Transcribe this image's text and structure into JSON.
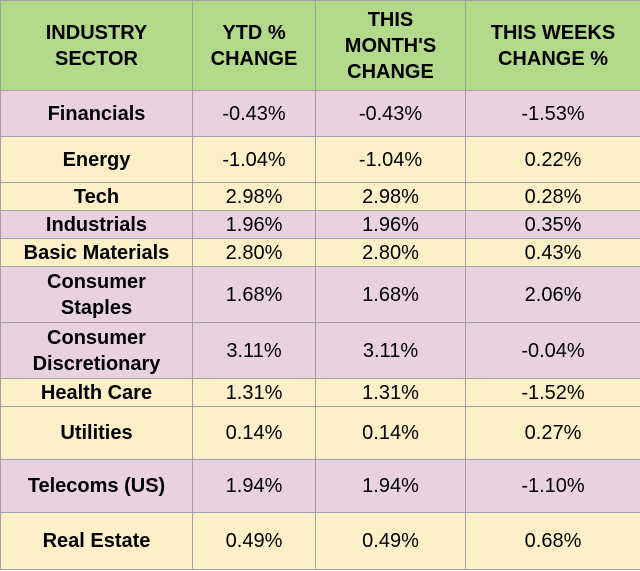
{
  "colors": {
    "header": "#b3d98a",
    "row_pink": "#ead1e0",
    "row_yellow": "#fdf0c8"
  },
  "chart_data": {
    "type": "table",
    "columns": [
      [
        "INDUSTRY",
        "SECTOR"
      ],
      [
        "YTD %",
        "CHANGE"
      ],
      [
        "THIS",
        "MONTH'S",
        "CHANGE"
      ],
      [
        "THIS WEEKS",
        "CHANGE %"
      ]
    ],
    "rows": [
      {
        "sector": [
          "Financials"
        ],
        "ytd": "-0.43%",
        "month": "-0.43%",
        "week": "-1.53%",
        "shade": "pink",
        "h": 46
      },
      {
        "sector": [
          "Energy"
        ],
        "ytd": "-1.04%",
        "month": "-1.04%",
        "week": "0.22%",
        "shade": "yellow",
        "h": 46
      },
      {
        "sector": [
          "Tech"
        ],
        "ytd": "2.98%",
        "month": "2.98%",
        "week": "0.28%",
        "shade": "yellow",
        "h": 28
      },
      {
        "sector": [
          "Industrials"
        ],
        "ytd": "1.96%",
        "month": "1.96%",
        "week": "0.35%",
        "shade": "pink",
        "h": 28
      },
      {
        "sector": [
          "Basic Materials"
        ],
        "ytd": "2.80%",
        "month": "2.80%",
        "week": "0.43%",
        "shade": "yellow",
        "h": 28
      },
      {
        "sector": [
          "Consumer",
          "Staples"
        ],
        "ytd": "1.68%",
        "month": "1.68%",
        "week": "2.06%",
        "shade": "pink",
        "h": 56
      },
      {
        "sector": [
          "Consumer",
          "Discretionary"
        ],
        "ytd": "3.11%",
        "month": "3.11%",
        "week": "-0.04%",
        "shade": "pink",
        "h": 56
      },
      {
        "sector": [
          "Health Care"
        ],
        "ytd": "1.31%",
        "month": "1.31%",
        "week": "-1.52%",
        "shade": "yellow",
        "h": 28
      },
      {
        "sector": [
          "Utilities"
        ],
        "ytd": "0.14%",
        "month": "0.14%",
        "week": "0.27%",
        "shade": "yellow",
        "h": 53
      },
      {
        "sector": [
          "Telecoms (US)"
        ],
        "ytd": "1.94%",
        "month": "1.94%",
        "week": "-1.10%",
        "shade": "pink",
        "h": 53
      },
      {
        "sector": [
          "Real Estate"
        ],
        "ytd": "0.49%",
        "month": "0.49%",
        "week": "0.68%",
        "shade": "yellow",
        "h": 57
      }
    ]
  }
}
